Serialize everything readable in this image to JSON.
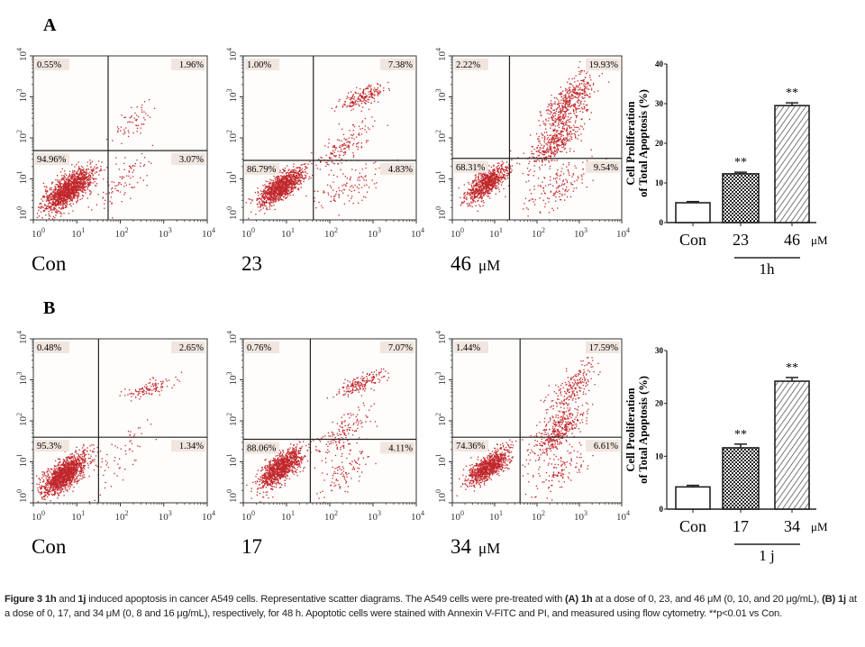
{
  "panels": [
    {
      "label": "A",
      "scatter_plots": [
        {
          "group_label": "Con",
          "unit": "",
          "quadrants": {
            "upper_left": "0.55%",
            "upper_right": "1.96%",
            "lower_left": "94.96%",
            "lower_right": "3.07%"
          }
        },
        {
          "group_label": "23",
          "unit": "",
          "quadrants": {
            "upper_left": "1.00%",
            "upper_right": "7.38%",
            "lower_left": "86.79%",
            "lower_right": "4.83%"
          }
        },
        {
          "group_label": "46",
          "unit": "μM",
          "quadrants": {
            "upper_left": "2.22%",
            "upper_right": "19.93%",
            "lower_left": "68.31%",
            "lower_right": "9.54%"
          }
        }
      ]
    },
    {
      "label": "B",
      "scatter_plots": [
        {
          "group_label": "Con",
          "unit": "",
          "quadrants": {
            "upper_left": "0.48%",
            "upper_right": "2.65%",
            "lower_left": "95.3%",
            "lower_right": "1.34%"
          }
        },
        {
          "group_label": "17",
          "unit": "",
          "quadrants": {
            "upper_left": "0.76%",
            "upper_right": "7.07%",
            "lower_left": "88.06%",
            "lower_right": "4.11%"
          }
        },
        {
          "group_label": "34",
          "unit": "μM",
          "quadrants": {
            "upper_left": "1.44%",
            "upper_right": "17.59%",
            "lower_left": "74.36%",
            "lower_right": "6.61%"
          }
        }
      ]
    }
  ],
  "scatter_axes": {
    "type": "scatter",
    "x_scale": "log",
    "y_scale": "log",
    "xlim": [
      1,
      10000
    ],
    "ylim": [
      1,
      10000
    ],
    "tick_base": "10",
    "tick_exponents": [
      "0",
      "1",
      "2",
      "3",
      "4"
    ],
    "point_color": "#c0262b"
  },
  "chart_data": [
    {
      "type": "bar",
      "ylabel_line1": "Cell Proliferation",
      "ylabel_line2": "of Total Apoptosis (%)",
      "ylim": [
        0,
        40
      ],
      "yticks": [
        "0",
        "10",
        "20",
        "30",
        "40"
      ],
      "categories": [
        "Con",
        "23",
        "46"
      ],
      "unit": "μM",
      "group_label": "1h",
      "values": [
        5.0,
        12.3,
        29.5
      ],
      "errors": [
        0.3,
        0.4,
        0.7
      ],
      "significance": [
        "",
        "**",
        "**"
      ],
      "patterns": [
        "white",
        "checker",
        "hatch"
      ]
    },
    {
      "type": "bar",
      "ylabel_line1": "Cell Proliferation",
      "ylabel_line2": "of Total Apoptosis (%)",
      "ylim": [
        0,
        30
      ],
      "yticks": [
        "0",
        "10",
        "20",
        "30"
      ],
      "categories": [
        "Con",
        "17",
        "34"
      ],
      "unit": "μM",
      "group_label": "1 j",
      "values": [
        4.2,
        11.6,
        24.2
      ],
      "errors": [
        0.3,
        0.7,
        0.7
      ],
      "significance": [
        "",
        "**",
        "**"
      ],
      "patterns": [
        "white",
        "checker",
        "hatch"
      ]
    }
  ],
  "caption": {
    "fig": "Figure 3",
    "c1": "1h",
    "t1": " and ",
    "c2": "1j",
    "t2": " induced apoptosis in cancer A549 cells. Representative scatter diagrams. The A549 cells were pre-treated with ",
    "a": "(A)",
    "t3": " ",
    "c3": "1h",
    "t4": " at a dose of 0, 23, and 46 μM (0, 10, and 20 μg/mL), ",
    "b": "(B)",
    "t5": " ",
    "c4": "1j",
    "t6": " at a dose of 0, 17, and 34 μM (0, 8 and 16 μg/mL), respectively, for 48 h. Apoptotic cells were stained with Annexin V-FITC and PI, and measured using flow cytometry. **p<0.01 vs Con."
  }
}
